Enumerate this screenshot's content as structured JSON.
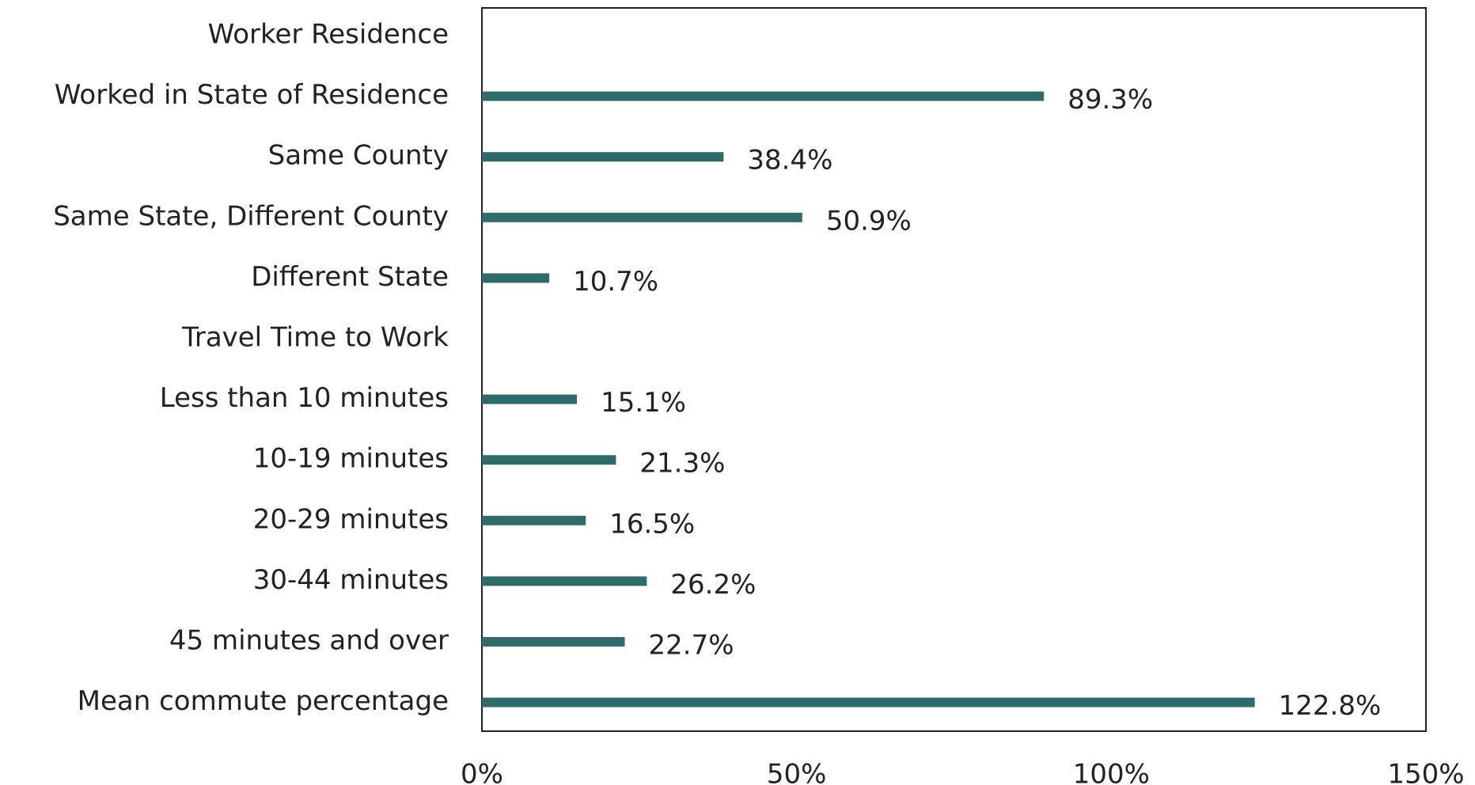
{
  "chart_data": {
    "type": "barh",
    "categories": [
      "Worker Residence",
      "Worked in State of Residence",
      "Same County",
      "Same State, Different County",
      "Different State",
      "Travel Time to Work",
      "Less than 10 minutes",
      "10-19 minutes",
      "20-29 minutes",
      "30-44 minutes",
      "45 minutes and over",
      "Mean commute percentage"
    ],
    "values": [
      null,
      89.3,
      38.4,
      50.9,
      10.7,
      null,
      15.1,
      21.3,
      16.5,
      26.2,
      22.7,
      122.8
    ],
    "value_labels": [
      null,
      "89.3%",
      "38.4%",
      "50.9%",
      "10.7%",
      null,
      "15.1%",
      "21.3%",
      "16.5%",
      "26.2%",
      "22.7%",
      "122.8%"
    ],
    "color": "#2e6b6b",
    "xlim": [
      0,
      150
    ],
    "xticks": [
      {
        "value": 0,
        "label": "0%"
      },
      {
        "value": 50,
        "label": "50%"
      },
      {
        "value": 100,
        "label": "100%"
      },
      {
        "value": 150,
        "label": "150%"
      }
    ],
    "grid": false
  }
}
